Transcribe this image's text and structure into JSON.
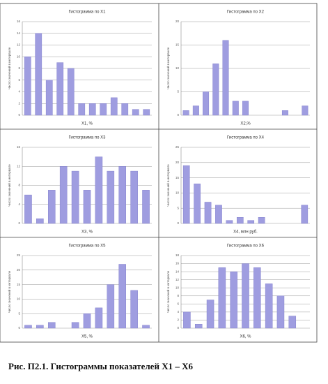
{
  "chart_data": [
    {
      "type": "bar",
      "title": "Гистограмма по X1",
      "xlabel": "X1, %",
      "ylabel": "Число значений в интервале",
      "categories": [
        null,
        null,
        null,
        null,
        null,
        null,
        null,
        null,
        null,
        null,
        null,
        null
      ],
      "series": [
        {
          "name": null,
          "color": "#9f9de0",
          "values": [
            10,
            14,
            6,
            9,
            8,
            2,
            2,
            2,
            3,
            2,
            1,
            1
          ]
        }
      ],
      "ylim": [
        0,
        16
      ],
      "yticks": [
        0,
        2,
        4,
        6,
        8,
        10,
        12,
        14,
        16
      ],
      "grid": true
    },
    {
      "type": "bar",
      "title": "Гистограмма по X2",
      "xlabel": "X2,%",
      "ylabel": "Число значений в интервале",
      "categories": [
        null,
        null,
        null,
        null,
        null,
        null,
        null,
        null,
        null,
        null,
        null,
        null,
        null
      ],
      "series": [
        {
          "name": null,
          "color": "#9f9de0",
          "values": [
            1,
            2,
            5,
            11,
            16,
            3,
            3,
            0,
            0,
            0,
            1,
            0,
            2
          ]
        }
      ],
      "ylim": [
        0,
        20
      ],
      "yticks": [
        0,
        5,
        10,
        15,
        20
      ],
      "grid": true
    },
    {
      "type": "bar",
      "title": "Гистограмма по X3",
      "xlabel": "X3, %",
      "ylabel": "Число значений в интервале",
      "categories": [
        null,
        null,
        null,
        null,
        null,
        null,
        null,
        null,
        null,
        null,
        null
      ],
      "series": [
        {
          "name": null,
          "color": "#9f9de0",
          "values": [
            6,
            1,
            7,
            12,
            11,
            7,
            14,
            11,
            12,
            11,
            7
          ]
        }
      ],
      "ylim": [
        0,
        16
      ],
      "yticks": [
        0,
        4,
        8,
        12,
        16
      ],
      "grid": true
    },
    {
      "type": "bar",
      "title": "Гистограмма по X4",
      "xlabel": "X4, млн руб.",
      "ylabel": "Число значений в интервале",
      "categories": [
        null,
        null,
        null,
        null,
        null,
        null,
        null,
        null,
        null,
        null,
        null,
        null
      ],
      "series": [
        {
          "name": null,
          "color": "#9f9de0",
          "values": [
            19,
            13,
            7,
            6,
            1,
            2,
            1,
            2,
            0,
            0,
            0,
            6
          ]
        }
      ],
      "ylim": [
        0,
        25
      ],
      "yticks": [
        0,
        5,
        10,
        15,
        20,
        25
      ],
      "grid": true
    },
    {
      "type": "bar",
      "title": "Гистограмма по X5",
      "xlabel": "X5, %",
      "ylabel": "Число значений в интервале",
      "categories": [
        null,
        null,
        null,
        null,
        null,
        null,
        null,
        null,
        null,
        null,
        null
      ],
      "series": [
        {
          "name": null,
          "color": "#9f9de0",
          "values": [
            1,
            1,
            2,
            0,
            2,
            5,
            7,
            15,
            22,
            13,
            1
          ]
        }
      ],
      "ylim": [
        0,
        25
      ],
      "yticks": [
        0,
        5,
        10,
        15,
        20,
        25
      ],
      "grid": true
    },
    {
      "type": "bar",
      "title": "Гистограмма по X6",
      "xlabel": "X6, %",
      "ylabel": "Число значений в интервале",
      "categories": [
        null,
        null,
        null,
        null,
        null,
        null,
        null,
        null,
        null,
        null,
        null
      ],
      "series": [
        {
          "name": null,
          "color": "#9f9de0",
          "values": [
            4,
            1,
            7,
            15,
            14,
            16,
            15,
            11,
            8,
            3,
            0
          ]
        }
      ],
      "ylim": [
        0,
        18
      ],
      "yticks": [
        0,
        2,
        4,
        6,
        8,
        10,
        12,
        14,
        16,
        18
      ],
      "grid": true
    }
  ],
  "caption": "Рис. П2.1. Гистограммы показателей X1 – X6"
}
